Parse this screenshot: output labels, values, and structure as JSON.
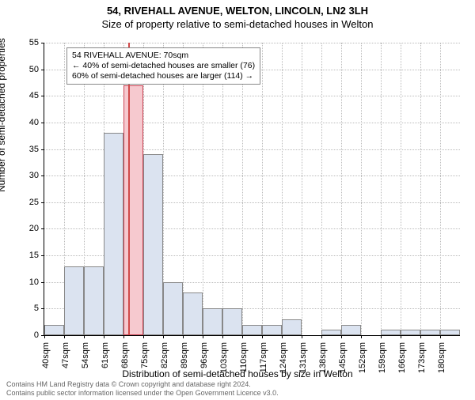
{
  "title_main": "54, RIVEHALL AVENUE, WELTON, LINCOLN, LN2 3LH",
  "title_sub": "Size of property relative to semi-detached houses in Welton",
  "ylabel": "Number of semi-detached properties",
  "xlabel": "Distribution of semi-detached houses by size in Welton",
  "footer1": "Contains HM Land Registry data © Crown copyright and database right 2024.",
  "footer2": "Contains public sector information licensed under the Open Government Licence v3.0.",
  "chart": {
    "type": "histogram",
    "ylim": [
      0,
      55
    ],
    "ytick_step": 5,
    "x_start": 40,
    "x_step": 7,
    "x_count": 21,
    "x_unit": "sqm",
    "bar_color": "#dbe3f0",
    "bar_border": "#888888",
    "highlight_color": "#f6c9cf",
    "highlight_border": "#cc4455",
    "marker_color": "#d04a4a",
    "grid_color": "#bbbbbb",
    "plot_bg": "#ffffff",
    "bins": [
      {
        "x": 40,
        "count": 2
      },
      {
        "x": 47,
        "count": 13
      },
      {
        "x": 54,
        "count": 13
      },
      {
        "x": 61,
        "count": 38
      },
      {
        "x": 68,
        "count": 47,
        "highlight": true
      },
      {
        "x": 75,
        "count": 34
      },
      {
        "x": 82,
        "count": 10
      },
      {
        "x": 89,
        "count": 8
      },
      {
        "x": 96,
        "count": 5
      },
      {
        "x": 103,
        "count": 5
      },
      {
        "x": 110,
        "count": 2
      },
      {
        "x": 117,
        "count": 2
      },
      {
        "x": 124,
        "count": 3
      },
      {
        "x": 131,
        "count": 0
      },
      {
        "x": 138,
        "count": 1
      },
      {
        "x": 145,
        "count": 2
      },
      {
        "x": 152,
        "count": 0
      },
      {
        "x": 159,
        "count": 1
      },
      {
        "x": 166,
        "count": 1
      },
      {
        "x": 173,
        "count": 1
      },
      {
        "x": 180,
        "count": 1
      }
    ],
    "marker_x": 70
  },
  "callout": {
    "line1": "54 RIVEHALL AVENUE: 70sqm",
    "line2": "← 40% of semi-detached houses are smaller (76)",
    "line3": "60% of semi-detached houses are larger (114) →"
  }
}
